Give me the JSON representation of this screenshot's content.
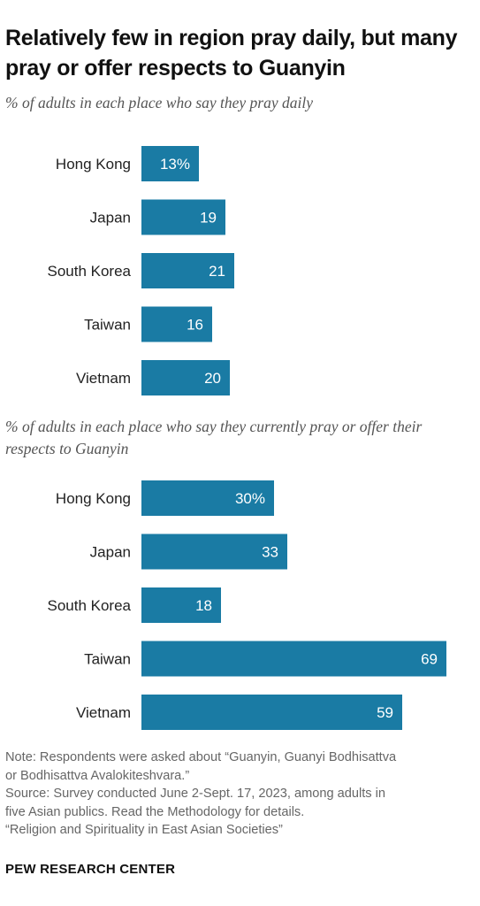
{
  "title": "Relatively few in region pray daily, but many pray or offer respects to Guanyin",
  "chart_data": [
    {
      "type": "bar",
      "orientation": "horizontal",
      "subtitle": "% of adults in each place who say they pray daily",
      "categories": [
        "Hong Kong",
        "Japan",
        "South Korea",
        "Taiwan",
        "Vietnam"
      ],
      "values": [
        13,
        19,
        21,
        16,
        20
      ],
      "value_labels": [
        "13%",
        "19",
        "21",
        "16",
        "20"
      ],
      "bar_color": "#1a7ba4"
    },
    {
      "type": "bar",
      "orientation": "horizontal",
      "subtitle": "% of adults in each place who say they currently pray or offer their respects to Guanyin",
      "categories": [
        "Hong Kong",
        "Japan",
        "South Korea",
        "Taiwan",
        "Vietnam"
      ],
      "values": [
        30,
        33,
        18,
        69,
        59
      ],
      "value_labels": [
        "30%",
        "33",
        "18",
        "69",
        "59"
      ],
      "bar_color": "#1a7ba4"
    }
  ],
  "notes": {
    "line1": "Note: Respondents were asked about “Guanyin, Guanyi Bodhisattva",
    "line2": "or Bodhisattva Avalokiteshvara.”",
    "line3": "Source: Survey conducted June 2-Sept. 17, 2023, among adults in",
    "line4": "five Asian publics. Read the Methodology for details.",
    "line5": "“Religion and Spirituality in East Asian Societies”"
  },
  "brand": "PEW RESEARCH CENTER"
}
